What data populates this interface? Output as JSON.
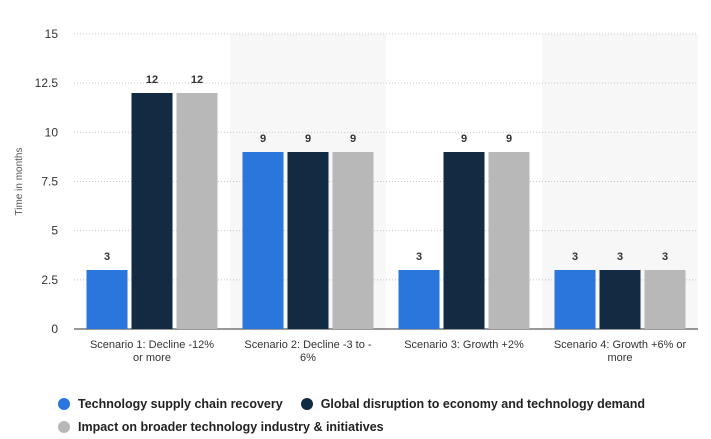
{
  "chart_data": {
    "type": "bar",
    "title": "",
    "xlabel": "",
    "ylabel": "Time in months",
    "ylim": [
      0,
      15
    ],
    "yticks": [
      "0",
      "2.5",
      "5",
      "7.5",
      "10",
      "12.5",
      "15"
    ],
    "categories": [
      [
        "Scenario 1: Decline -12%",
        "or more"
      ],
      [
        "Scenario 2: Decline -3 to -",
        "6%"
      ],
      [
        "Scenario 3: Growth +2%"
      ],
      [
        "Scenario 4: Growth +6% or",
        "more"
      ]
    ],
    "series": [
      {
        "name": "Technology supply chain recovery",
        "color": "#2a76dd",
        "values": [
          3,
          9,
          3,
          3
        ]
      },
      {
        "name": "Global disruption to economy and technology demand",
        "color": "#132a43",
        "values": [
          12,
          9,
          9,
          3
        ]
      },
      {
        "name": "Impact on broader technology industry & initiatives",
        "color": "#b8b8b8",
        "values": [
          12,
          9,
          9,
          3
        ]
      }
    ],
    "grid": true,
    "legend_position": "bottom-left"
  }
}
